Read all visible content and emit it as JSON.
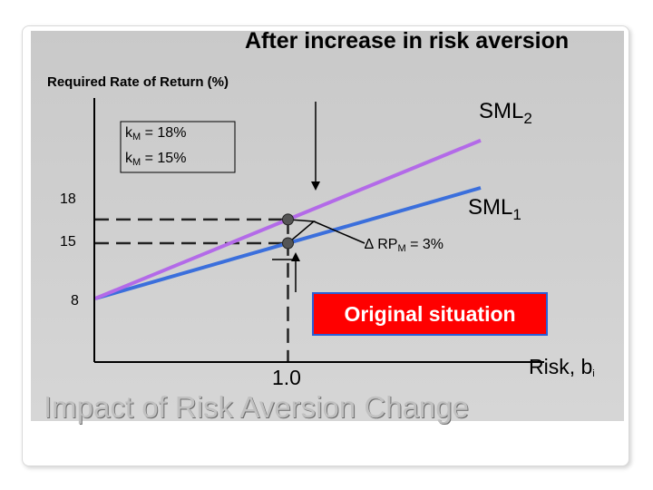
{
  "slide": {
    "title": "Impact of Risk Aversion Change",
    "annotation": "After increase in risk aversion",
    "callout": "Original situation"
  },
  "chart_data": {
    "type": "line",
    "title": "Impact of Risk Aversion Change",
    "ylabel": "Required Rate of Return (%)",
    "xlabel": "Risk, b",
    "xlabel_subscript": "i",
    "xlim": [
      0,
      2.0
    ],
    "ylim": [
      0,
      25
    ],
    "y_ticks": [
      "18",
      "15",
      "8"
    ],
    "x_ticks": [
      "1.0"
    ],
    "series": [
      {
        "name": "SML",
        "subscript": "1",
        "color": "#3b6fdc",
        "x": [
          0,
          2.0
        ],
        "y": [
          8,
          22
        ]
      },
      {
        "name": "SML",
        "subscript": "2",
        "color": "#b36ae8",
        "x": [
          0,
          2.0
        ],
        "y": [
          8,
          28
        ]
      }
    ],
    "points": [
      {
        "x": 1.0,
        "y": 18
      },
      {
        "x": 1.0,
        "y": 15
      }
    ],
    "annotations": {
      "km2": {
        "k": "k",
        "sub": "M",
        "text": " = 18%"
      },
      "km1": {
        "k": "k",
        "sub": "M",
        "text": " = 15%"
      },
      "rpm": {
        "prefix": "∆ RP",
        "sub": "M",
        "text": " = 3%"
      }
    },
    "grid": false,
    "legend": "none"
  }
}
